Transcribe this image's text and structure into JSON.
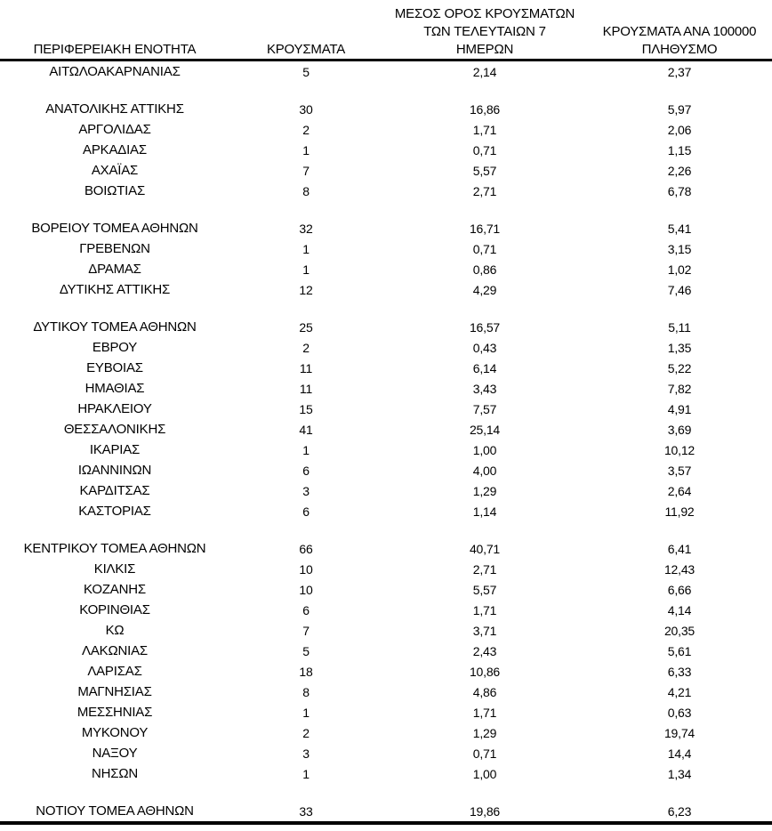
{
  "page": {
    "background": "#ffffff",
    "text_color": "#000000",
    "rule_color": "#000000"
  },
  "table": {
    "columns": [
      {
        "label": "ΠΕΡΙΦΕΡΕΙΑΚΗ ΕΝΟΤΗΤΑ"
      },
      {
        "label": "ΚΡΟΥΣΜΑΤΑ"
      },
      {
        "label": "ΜΕΣΟΣ ΟΡΟΣ ΚΡΟΥΣΜΑΤΩΝ\nΤΩΝ ΤΕΛΕΥΤΑΙΩΝ 7\nΗΜΕΡΩΝ"
      },
      {
        "label": "ΚΡΟΥΣΜΑΤΑ ΑΝΑ 100000\nΠΛΗΘΥΣΜΟ"
      }
    ],
    "rows": [
      {
        "region": "ΑΙΤΩΛΟΑΚΑΡΝΑΝΙΑΣ",
        "cases": "5",
        "avg7": "2,14",
        "per100k": "2,37",
        "gap_after": true
      },
      {
        "region": "ΑΝΑΤΟΛΙΚΗΣ ΑΤΤΙΚΗΣ",
        "cases": "30",
        "avg7": "16,86",
        "per100k": "5,97",
        "gap_after": false
      },
      {
        "region": "ΑΡΓΟΛΙΔΑΣ",
        "cases": "2",
        "avg7": "1,71",
        "per100k": "2,06",
        "gap_after": false
      },
      {
        "region": "ΑΡΚΑΔΙΑΣ",
        "cases": "1",
        "avg7": "0,71",
        "per100k": "1,15",
        "gap_after": false
      },
      {
        "region": "ΑΧΑΪΑΣ",
        "cases": "7",
        "avg7": "5,57",
        "per100k": "2,26",
        "gap_after": false
      },
      {
        "region": "ΒΟΙΩΤΙΑΣ",
        "cases": "8",
        "avg7": "2,71",
        "per100k": "6,78",
        "gap_after": true
      },
      {
        "region": "ΒΟΡΕΙΟΥ ΤΟΜΕΑ ΑΘΗΝΩΝ",
        "cases": "32",
        "avg7": "16,71",
        "per100k": "5,41",
        "gap_after": false
      },
      {
        "region": "ΓΡΕΒΕΝΩΝ",
        "cases": "1",
        "avg7": "0,71",
        "per100k": "3,15",
        "gap_after": false
      },
      {
        "region": "ΔΡΑΜΑΣ",
        "cases": "1",
        "avg7": "0,86",
        "per100k": "1,02",
        "gap_after": false
      },
      {
        "region": "ΔΥΤΙΚΗΣ ΑΤΤΙΚΗΣ",
        "cases": "12",
        "avg7": "4,29",
        "per100k": "7,46",
        "gap_after": true
      },
      {
        "region": "ΔΥΤΙΚΟΥ ΤΟΜΕΑ ΑΘΗΝΩΝ",
        "cases": "25",
        "avg7": "16,57",
        "per100k": "5,11",
        "gap_after": false
      },
      {
        "region": "ΕΒΡΟΥ",
        "cases": "2",
        "avg7": "0,43",
        "per100k": "1,35",
        "gap_after": false
      },
      {
        "region": "ΕΥΒΟΙΑΣ",
        "cases": "11",
        "avg7": "6,14",
        "per100k": "5,22",
        "gap_after": false
      },
      {
        "region": "ΗΜΑΘΙΑΣ",
        "cases": "11",
        "avg7": "3,43",
        "per100k": "7,82",
        "gap_after": false
      },
      {
        "region": "ΗΡΑΚΛΕΙΟΥ",
        "cases": "15",
        "avg7": "7,57",
        "per100k": "4,91",
        "gap_after": false
      },
      {
        "region": "ΘΕΣΣΑΛΟΝΙΚΗΣ",
        "cases": "41",
        "avg7": "25,14",
        "per100k": "3,69",
        "gap_after": false
      },
      {
        "region": "ΙΚΑΡΙΑΣ",
        "cases": "1",
        "avg7": "1,00",
        "per100k": "10,12",
        "gap_after": false
      },
      {
        "region": "ΙΩΑΝΝΙΝΩΝ",
        "cases": "6",
        "avg7": "4,00",
        "per100k": "3,57",
        "gap_after": false
      },
      {
        "region": "ΚΑΡΔΙΤΣΑΣ",
        "cases": "3",
        "avg7": "1,29",
        "per100k": "2,64",
        "gap_after": false
      },
      {
        "region": "ΚΑΣΤΟΡΙΑΣ",
        "cases": "6",
        "avg7": "1,14",
        "per100k": "11,92",
        "gap_after": true
      },
      {
        "region": "ΚΕΝΤΡΙΚΟΥ ΤΟΜΕΑ ΑΘΗΝΩΝ",
        "cases": "66",
        "avg7": "40,71",
        "per100k": "6,41",
        "gap_after": false
      },
      {
        "region": "ΚΙΛΚΙΣ",
        "cases": "10",
        "avg7": "2,71",
        "per100k": "12,43",
        "gap_after": false
      },
      {
        "region": "ΚΟΖΑΝΗΣ",
        "cases": "10",
        "avg7": "5,57",
        "per100k": "6,66",
        "gap_after": false
      },
      {
        "region": "ΚΟΡΙΝΘΙΑΣ",
        "cases": "6",
        "avg7": "1,71",
        "per100k": "4,14",
        "gap_after": false
      },
      {
        "region": "ΚΩ",
        "cases": "7",
        "avg7": "3,71",
        "per100k": "20,35",
        "gap_after": false
      },
      {
        "region": "ΛΑΚΩΝΙΑΣ",
        "cases": "5",
        "avg7": "2,43",
        "per100k": "5,61",
        "gap_after": false
      },
      {
        "region": "ΛΑΡΙΣΑΣ",
        "cases": "18",
        "avg7": "10,86",
        "per100k": "6,33",
        "gap_after": false
      },
      {
        "region": "ΜΑΓΝΗΣΙΑΣ",
        "cases": "8",
        "avg7": "4,86",
        "per100k": "4,21",
        "gap_after": false
      },
      {
        "region": "ΜΕΣΣΗΝΙΑΣ",
        "cases": "1",
        "avg7": "1,71",
        "per100k": "0,63",
        "gap_after": false
      },
      {
        "region": "ΜΥΚΟΝΟΥ",
        "cases": "2",
        "avg7": "1,29",
        "per100k": "19,74",
        "gap_after": false
      },
      {
        "region": "ΝΑΞΟΥ",
        "cases": "3",
        "avg7": "0,71",
        "per100k": "14,4",
        "gap_after": false
      },
      {
        "region": "ΝΗΣΩΝ",
        "cases": "1",
        "avg7": "1,00",
        "per100k": "1,34",
        "gap_after": true
      },
      {
        "region": "ΝΟΤΙΟΥ ΤΟΜΕΑ ΑΘΗΝΩΝ",
        "cases": "33",
        "avg7": "19,86",
        "per100k": "6,23",
        "gap_after": false
      }
    ]
  }
}
